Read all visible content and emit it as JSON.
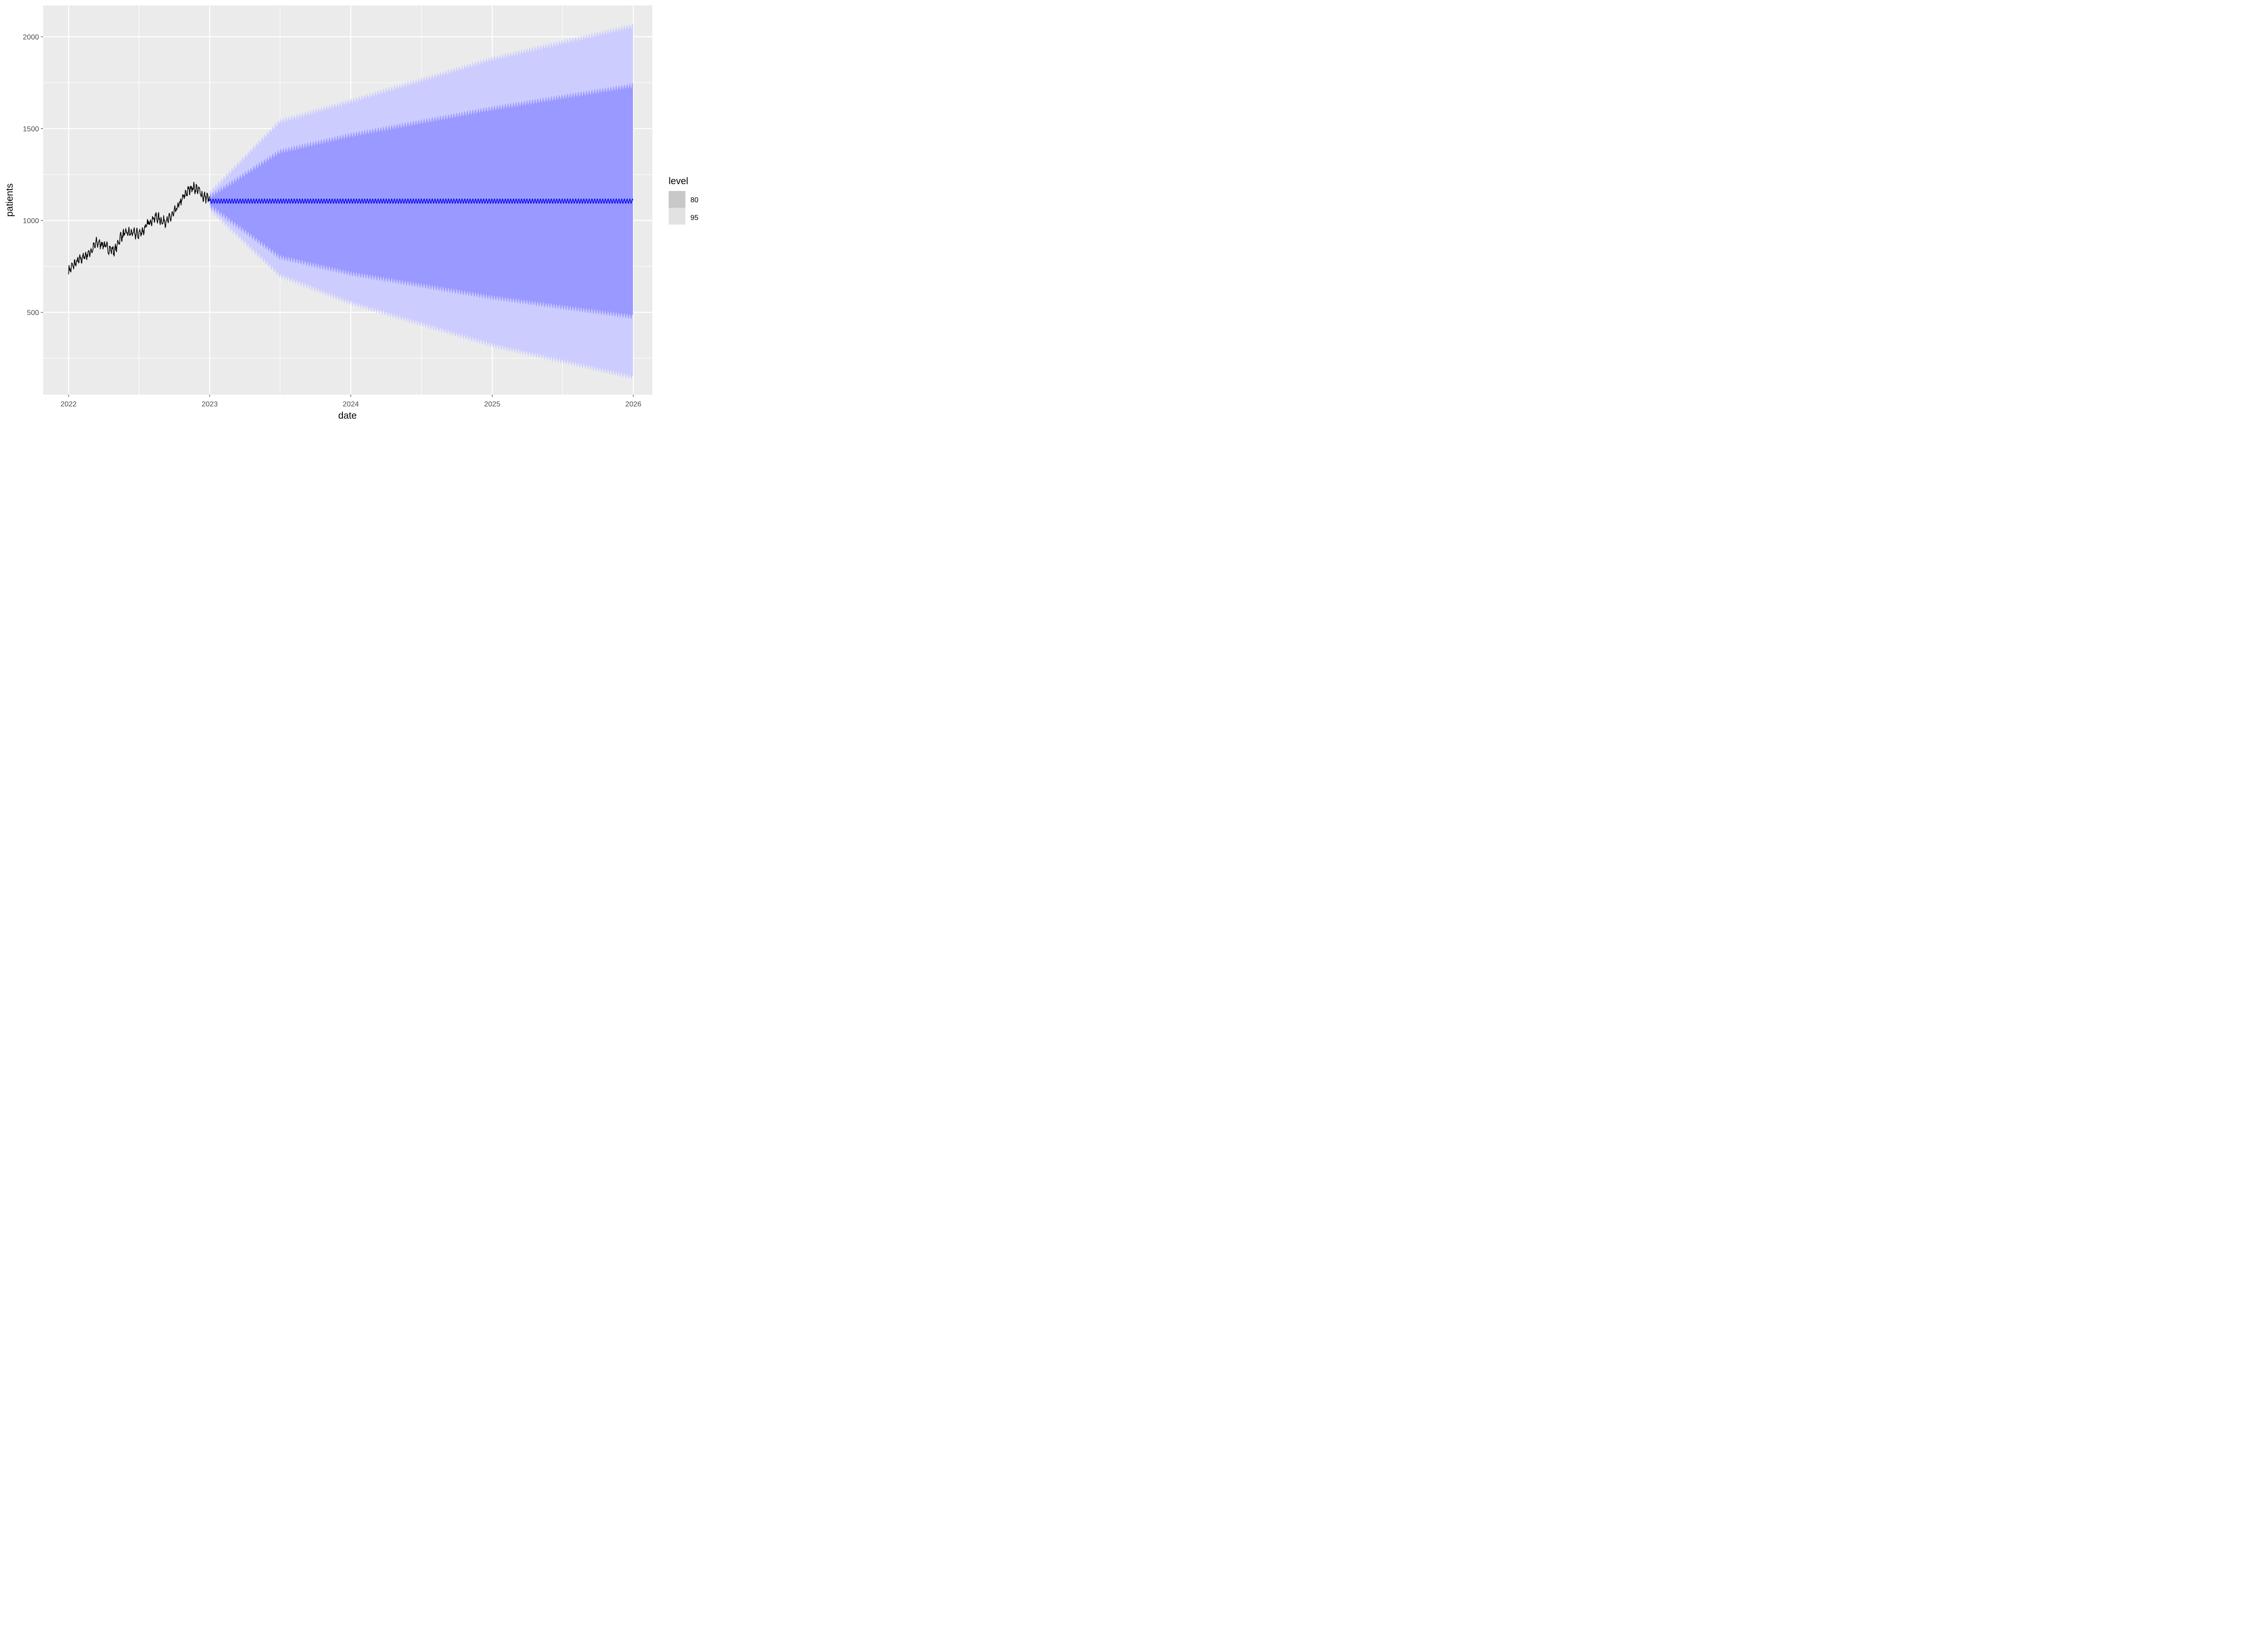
{
  "chart_data": {
    "type": "line",
    "xlabel": "date",
    "ylabel": "patients",
    "x_ticks": [
      "2022",
      "2023",
      "2024",
      "2025",
      "2026"
    ],
    "y_ticks": [
      "500",
      "1000",
      "1500",
      "2000"
    ],
    "xlim": [
      "2021-10-27",
      "2026-02-19"
    ],
    "ylim": [
      52,
      2170
    ],
    "grid": true,
    "legend": {
      "title": "level",
      "placement": "right",
      "entries": [
        {
          "label": "80",
          "color": "#c8c8c8"
        },
        {
          "label": "95",
          "color": "#e2e2e2"
        }
      ]
    },
    "colors": {
      "panel_background": "#ebebeb",
      "gridline": "#ffffff",
      "history_line": "#000000",
      "forecast_line": "#0000ee",
      "band_80": "#9999ff",
      "band_95": "#ccccff"
    },
    "series": [
      {
        "role": "history",
        "x_start": "2022-01-01",
        "x_end": "2022-12-31",
        "anchors": [
          [
            "2022-01-01",
            725
          ],
          [
            "2022-01-15",
            760
          ],
          [
            "2022-02-01",
            790
          ],
          [
            "2022-02-15",
            810
          ],
          [
            "2022-03-01",
            835
          ],
          [
            "2022-03-15",
            880
          ],
          [
            "2022-04-01",
            870
          ],
          [
            "2022-04-15",
            845
          ],
          [
            "2022-05-01",
            835
          ],
          [
            "2022-05-15",
            910
          ],
          [
            "2022-06-01",
            935
          ],
          [
            "2022-06-15",
            930
          ],
          [
            "2022-07-01",
            925
          ],
          [
            "2022-07-15",
            950
          ],
          [
            "2022-08-01",
            1000
          ],
          [
            "2022-08-15",
            1020
          ],
          [
            "2022-09-01",
            995
          ],
          [
            "2022-09-15",
            1000
          ],
          [
            "2022-10-01",
            1040
          ],
          [
            "2022-10-15",
            1090
          ],
          [
            "2022-11-01",
            1150
          ],
          [
            "2022-11-15",
            1180
          ],
          [
            "2022-12-01",
            1170
          ],
          [
            "2022-12-15",
            1130
          ],
          [
            "2022-12-31",
            1120
          ]
        ]
      },
      {
        "role": "forecast",
        "x_start": "2023-01-01",
        "x_end": "2025-12-31",
        "mean": 1105,
        "weekly_amplitude": 12,
        "interval_80_lower": {
          "2023-01-01": 1080,
          "2023-07-01": 800,
          "2024-01-01": 710,
          "2025-01-01": 580,
          "2025-12-31": 475
        },
        "interval_80_upper": {
          "2023-01-01": 1130,
          "2023-07-01": 1375,
          "2024-01-01": 1465,
          "2025-01-01": 1610,
          "2025-12-31": 1735
        },
        "interval_95_lower": {
          "2023-01-01": 1060,
          "2023-07-01": 700,
          "2024-01-01": 550,
          "2025-01-01": 320,
          "2025-12-31": 145
        },
        "interval_95_upper": {
          "2023-01-01": 1150,
          "2023-07-01": 1540,
          "2024-01-01": 1650,
          "2025-01-01": 1880,
          "2025-12-31": 2060
        }
      }
    ]
  }
}
